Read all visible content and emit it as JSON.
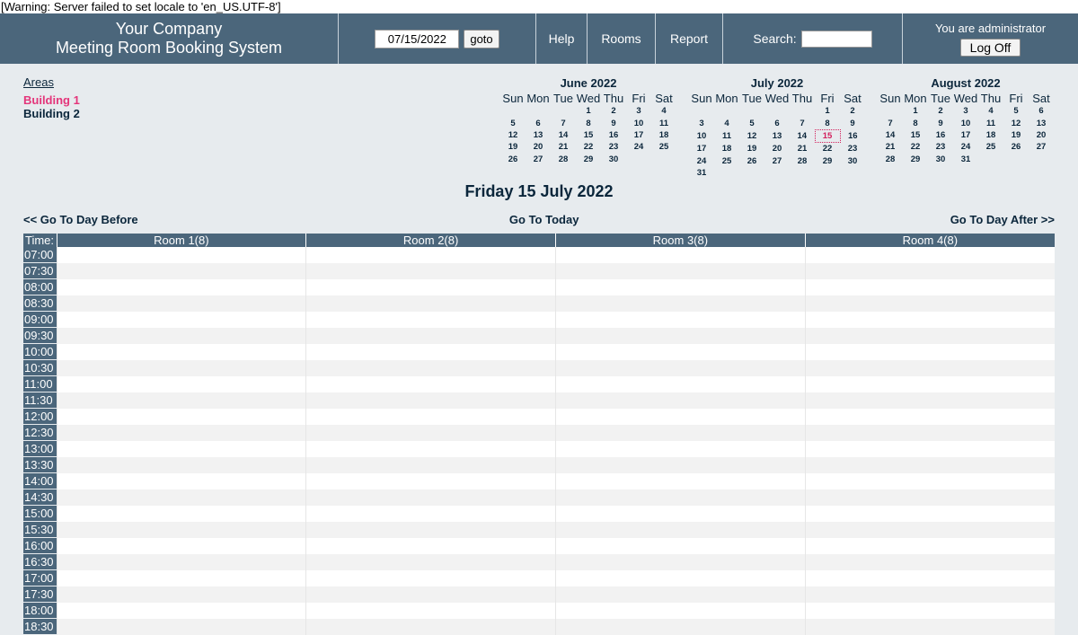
{
  "warning": "[Warning: Server failed to set locale to 'en_US.UTF-8']",
  "header": {
    "company_line1": "Your Company",
    "company_line2": "Meeting Room Booking System",
    "date_value": "07/15/2022",
    "goto_label": "goto",
    "help_label": "Help",
    "rooms_label": "Rooms",
    "report_label": "Report",
    "search_label": "Search:",
    "user_text": "You are administrator",
    "logoff_label": "Log Off"
  },
  "areas": {
    "title": "Areas",
    "items": [
      {
        "label": "Building 1",
        "current": true
      },
      {
        "label": "Building 2",
        "current": false
      }
    ]
  },
  "calendars": [
    {
      "title": "June 2022",
      "weekdays": [
        "Sun",
        "Mon",
        "Tue",
        "Wed",
        "Thu",
        "Fri",
        "Sat"
      ],
      "weeks": [
        [
          "",
          "",
          "",
          "1",
          "2",
          "3",
          "4"
        ],
        [
          "5",
          "6",
          "7",
          "8",
          "9",
          "10",
          "11"
        ],
        [
          "12",
          "13",
          "14",
          "15",
          "16",
          "17",
          "18"
        ],
        [
          "19",
          "20",
          "21",
          "22",
          "23",
          "24",
          "25"
        ],
        [
          "26",
          "27",
          "28",
          "29",
          "30",
          "",
          ""
        ]
      ]
    },
    {
      "title": "July 2022",
      "weekdays": [
        "Sun",
        "Mon",
        "Tue",
        "Wed",
        "Thu",
        "Fri",
        "Sat"
      ],
      "today": "15",
      "weeks": [
        [
          "",
          "",
          "",
          "",
          "",
          "1",
          "2"
        ],
        [
          "3",
          "4",
          "5",
          "6",
          "7",
          "8",
          "9"
        ],
        [
          "10",
          "11",
          "12",
          "13",
          "14",
          "15",
          "16"
        ],
        [
          "17",
          "18",
          "19",
          "20",
          "21",
          "22",
          "23"
        ],
        [
          "24",
          "25",
          "26",
          "27",
          "28",
          "29",
          "30"
        ],
        [
          "31",
          "",
          "",
          "",
          "",
          "",
          ""
        ]
      ]
    },
    {
      "title": "August 2022",
      "weekdays": [
        "Sun",
        "Mon",
        "Tue",
        "Wed",
        "Thu",
        "Fri",
        "Sat"
      ],
      "weeks": [
        [
          "",
          "1",
          "2",
          "3",
          "4",
          "5",
          "6"
        ],
        [
          "7",
          "8",
          "9",
          "10",
          "11",
          "12",
          "13"
        ],
        [
          "14",
          "15",
          "16",
          "17",
          "18",
          "19",
          "20"
        ],
        [
          "21",
          "22",
          "23",
          "24",
          "25",
          "26",
          "27"
        ],
        [
          "28",
          "29",
          "30",
          "31",
          "",
          "",
          ""
        ]
      ]
    }
  ],
  "day_title": "Friday 15 July 2022",
  "nav": {
    "before": "<< Go To Day Before",
    "today": "Go To Today",
    "after": "Go To Day After >>"
  },
  "grid": {
    "time_header": "Time:",
    "rooms": [
      "Room 1(8)",
      "Room 2(8)",
      "Room 3(8)",
      "Room 4(8)"
    ],
    "times": [
      "07:00",
      "07:30",
      "08:00",
      "08:30",
      "09:00",
      "09:30",
      "10:00",
      "10:30",
      "11:00",
      "11:30",
      "12:00",
      "12:30",
      "13:00",
      "13:30",
      "14:00",
      "14:30",
      "15:00",
      "15:30",
      "16:00",
      "16:30",
      "17:00",
      "17:30",
      "18:00",
      "18:30"
    ]
  }
}
